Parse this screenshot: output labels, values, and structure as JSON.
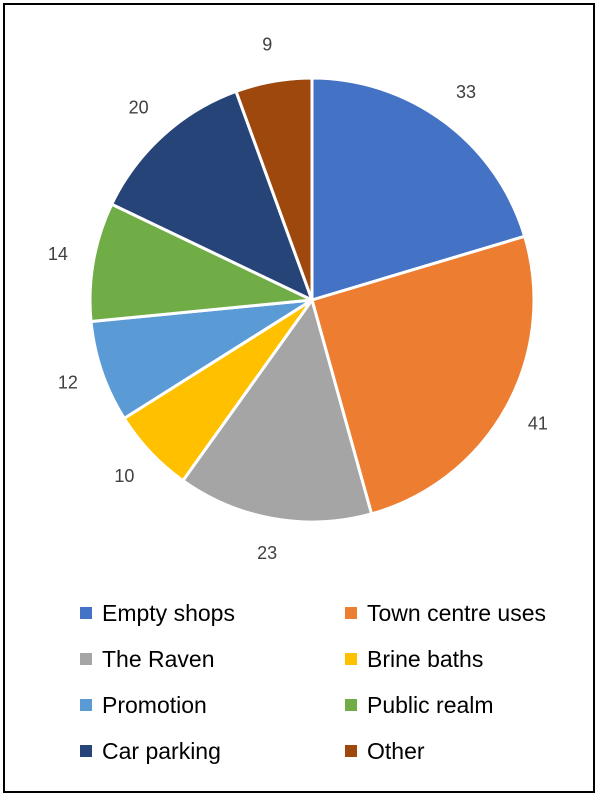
{
  "chart_data": {
    "type": "pie",
    "title": "",
    "categories": [
      "Empty shops",
      "Town centre uses",
      "The Raven",
      "Brine baths",
      "Promotion",
      "Public realm",
      "Car parking",
      "Other"
    ],
    "values": [
      33,
      41,
      23,
      10,
      12,
      14,
      20,
      9
    ],
    "colors": [
      "#4472C4",
      "#ED7D31",
      "#A5A5A5",
      "#FFC000",
      "#5B9BD5",
      "#70AD47",
      "#264478",
      "#9E480E"
    ],
    "legend_position": "bottom",
    "start_angle": "top",
    "direction": "clockwise"
  }
}
